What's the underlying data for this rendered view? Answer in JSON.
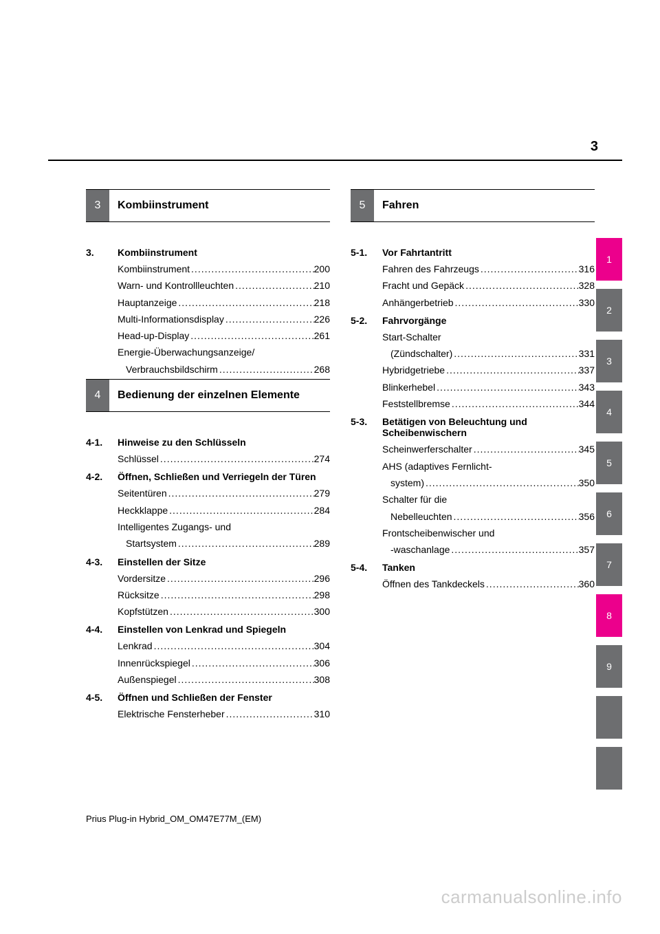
{
  "page_number": "3",
  "footer": "Prius Plug-in Hybrid_OM_OM47E77M_(EM)",
  "watermark": "carmanualsonline.info",
  "tabs": [
    {
      "n": "1",
      "bg": "#ec008c"
    },
    {
      "n": "2",
      "bg": "#6d6e70"
    },
    {
      "n": "3",
      "bg": "#6d6e70"
    },
    {
      "n": "4",
      "bg": "#6d6e70"
    },
    {
      "n": "5",
      "bg": "#6d6e70"
    },
    {
      "n": "6",
      "bg": "#6d6e70"
    },
    {
      "n": "7",
      "bg": "#6d6e70"
    },
    {
      "n": "8",
      "bg": "#ec008c"
    },
    {
      "n": "9",
      "bg": "#6d6e70"
    },
    {
      "n": "",
      "bg": "#6d6e70"
    },
    {
      "n": "",
      "bg": "#6d6e70"
    }
  ],
  "col_left": {
    "blocks": [
      {
        "type": "bar",
        "num": "3",
        "title": "Kombiinstrument"
      },
      {
        "type": "spacer"
      },
      {
        "type": "heading",
        "num": "3.",
        "title": "Kombiinstrument"
      },
      {
        "type": "entry",
        "label": "Kombiinstrument",
        "page": "200"
      },
      {
        "type": "entry",
        "label": "Warn- und Kontrollleuchten",
        "page": "210"
      },
      {
        "type": "entry",
        "label": "Hauptanzeige",
        "page": "218"
      },
      {
        "type": "entry",
        "label": "Multi-Informationsdisplay",
        "page": "226"
      },
      {
        "type": "entry",
        "label": "Head-up-Display",
        "page": "261"
      },
      {
        "type": "entry2",
        "line1": "Energie-Überwachungsanzeige/",
        "line2": "Verbrauchsbildschirm",
        "page": "268"
      },
      {
        "type": "bar",
        "num": "4",
        "title": "Bedienung der einzelnen Elemente"
      },
      {
        "type": "spacer"
      },
      {
        "type": "heading",
        "num": "4-1.",
        "title": "Hinweise zu den Schlüsseln"
      },
      {
        "type": "entry",
        "label": "Schlüssel",
        "page": "274"
      },
      {
        "type": "heading",
        "num": "4-2.",
        "title": "Öffnen, Schließen und Verriegeln der Türen"
      },
      {
        "type": "entry",
        "label": "Seitentüren",
        "page": "279"
      },
      {
        "type": "entry",
        "label": "Heckklappe",
        "page": "284"
      },
      {
        "type": "entry2",
        "line1": "Intelligentes Zugangs- und",
        "line2": "Startsystem",
        "page": "289"
      },
      {
        "type": "heading",
        "num": "4-3.",
        "title": "Einstellen der Sitze"
      },
      {
        "type": "entry",
        "label": "Vordersitze",
        "page": "296"
      },
      {
        "type": "entry",
        "label": "Rücksitze",
        "page": "298"
      },
      {
        "type": "entry",
        "label": "Kopfstützen",
        "page": "300"
      },
      {
        "type": "heading",
        "num": "4-4.",
        "title": "Einstellen von Lenkrad und Spiegeln"
      },
      {
        "type": "entry",
        "label": "Lenkrad",
        "page": "304"
      },
      {
        "type": "entry",
        "label": "Innenrückspiegel",
        "page": "306"
      },
      {
        "type": "entry",
        "label": "Außenspiegel",
        "page": "308"
      },
      {
        "type": "heading",
        "num": "4-5.",
        "title": "Öffnen und Schließen der Fenster"
      },
      {
        "type": "entry",
        "label": "Elektrische Fensterheber",
        "page": "310"
      }
    ]
  },
  "col_right": {
    "blocks": [
      {
        "type": "bar",
        "num": "5",
        "title": "Fahren"
      },
      {
        "type": "spacer"
      },
      {
        "type": "heading",
        "num": "5-1.",
        "title": "Vor Fahrtantritt"
      },
      {
        "type": "entry",
        "label": "Fahren des Fahrzeugs",
        "page": "316"
      },
      {
        "type": "entry",
        "label": "Fracht und Gepäck",
        "page": "328"
      },
      {
        "type": "entry",
        "label": "Anhängerbetrieb",
        "page": "330"
      },
      {
        "type": "heading",
        "num": "5-2.",
        "title": "Fahrvorgänge"
      },
      {
        "type": "entry2",
        "line1": "Start-Schalter",
        "line2": "(Zündschalter)",
        "page": "331"
      },
      {
        "type": "entry",
        "label": "Hybridgetriebe",
        "page": "337"
      },
      {
        "type": "entry",
        "label": "Blinkerhebel",
        "page": "343"
      },
      {
        "type": "entry",
        "label": "Feststellbremse",
        "page": "344"
      },
      {
        "type": "heading",
        "num": "5-3.",
        "title": "Betätigen von Beleuchtung und Scheibenwischern"
      },
      {
        "type": "entry",
        "label": "Scheinwerferschalter",
        "page": "345"
      },
      {
        "type": "entry2",
        "line1": "AHS (adaptives Fernlicht-",
        "line2": "system)",
        "page": "350"
      },
      {
        "type": "entry2",
        "line1": "Schalter für die",
        "line2": "Nebelleuchten",
        "page": "356"
      },
      {
        "type": "entry2",
        "line1": "Frontscheibenwischer und",
        "line2": "-waschanlage",
        "page": "357"
      },
      {
        "type": "heading",
        "num": "5-4.",
        "title": "Tanken"
      },
      {
        "type": "entry",
        "label": "Öffnen des Tankdeckels",
        "page": "360"
      }
    ]
  }
}
